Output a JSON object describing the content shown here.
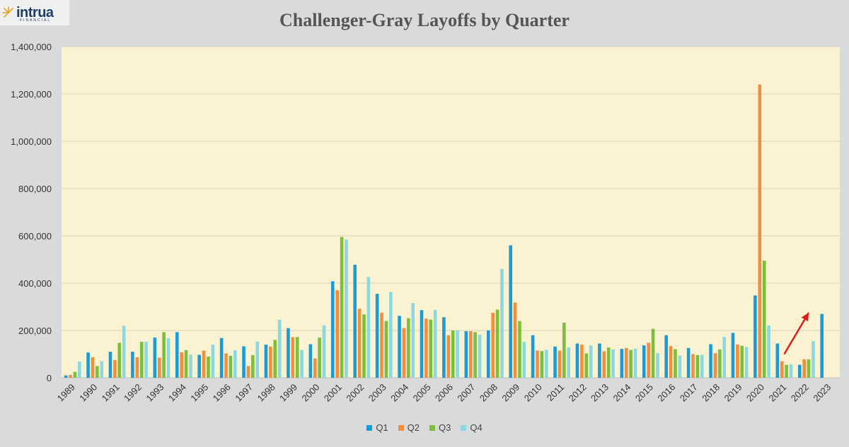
{
  "brand": {
    "name": "intrua",
    "sub": "FINANCIAL"
  },
  "colors": {
    "background": "#d9dadc",
    "plot_bg": "#fbf2d1",
    "Q1": "#1a9ad6",
    "Q2": "#f28e3d",
    "Q3": "#7dbe3a",
    "Q4": "#8ad9e0",
    "arrow": "#e01b1b"
  },
  "chart_data": {
    "type": "bar",
    "title": "Challenger-Gray Layoffs by Quarter",
    "xlabel": "",
    "ylabel": "",
    "ylim": [
      0,
      1400000
    ],
    "yticks": [
      0,
      200000,
      400000,
      600000,
      800000,
      1000000,
      1200000,
      1400000
    ],
    "ytick_labels": [
      "0",
      "200,000",
      "400,000",
      "600,000",
      "800,000",
      "1,000,000",
      "1,200,000",
      "1,400,000"
    ],
    "legend_position": "bottom",
    "grid": "horizontal",
    "categories": [
      "1989",
      "1990",
      "1991",
      "1992",
      "1993",
      "1994",
      "1995",
      "1996",
      "1997",
      "1998",
      "1999",
      "2000",
      "2001",
      "2002",
      "2003",
      "2004",
      "2005",
      "2006",
      "2007",
      "2008",
      "2009",
      "2010",
      "2011",
      "2012",
      "2013",
      "2014",
      "2015",
      "2016",
      "2017",
      "2018",
      "2019",
      "2020",
      "2021",
      "2022",
      "2023"
    ],
    "series": [
      {
        "name": "Q1",
        "values": [
          10000,
          107000,
          110000,
          110000,
          170000,
          193000,
          97000,
          168000,
          133000,
          140000,
          210000,
          142000,
          408000,
          478000,
          355000,
          262000,
          286000,
          256000,
          197000,
          200000,
          560000,
          180000,
          132000,
          145000,
          145000,
          122000,
          137000,
          180000,
          126000,
          142000,
          190000,
          348000,
          145000,
          55000,
          270000
        ]
      },
      {
        "name": "Q2",
        "values": [
          12000,
          87000,
          75000,
          87000,
          85000,
          108000,
          115000,
          103000,
          50000,
          132000,
          172000,
          82000,
          370000,
          292000,
          275000,
          210000,
          250000,
          180000,
          197000,
          275000,
          318000,
          115000,
          115000,
          140000,
          112000,
          126000,
          148000,
          134000,
          100000,
          104000,
          141000,
          1240000,
          70000,
          78000,
          null
        ]
      },
      {
        "name": "Q3",
        "values": [
          25000,
          50000,
          148000,
          152000,
          193000,
          117000,
          90000,
          93000,
          96000,
          160000,
          172000,
          170000,
          595000,
          268000,
          240000,
          252000,
          246000,
          200000,
          193000,
          288000,
          240000,
          113000,
          233000,
          103000,
          128000,
          118000,
          207000,
          121000,
          96000,
          120000,
          135000,
          495000,
          55000,
          78000,
          null
        ]
      },
      {
        "name": "Q4",
        "values": [
          68000,
          70000,
          220000,
          152000,
          167000,
          98000,
          140000,
          116000,
          153000,
          246000,
          118000,
          222000,
          585000,
          426000,
          363000,
          316000,
          287000,
          200000,
          182000,
          460000,
          152000,
          118000,
          128000,
          137000,
          120000,
          123000,
          104000,
          94000,
          97000,
          173000,
          130000,
          221000,
          57000,
          155000,
          null
        ]
      }
    ],
    "annotations": [
      {
        "kind": "arrow",
        "from": {
          "x": "2021",
          "y": 100000
        },
        "to": {
          "x": "2022",
          "y": 275000
        }
      }
    ]
  }
}
